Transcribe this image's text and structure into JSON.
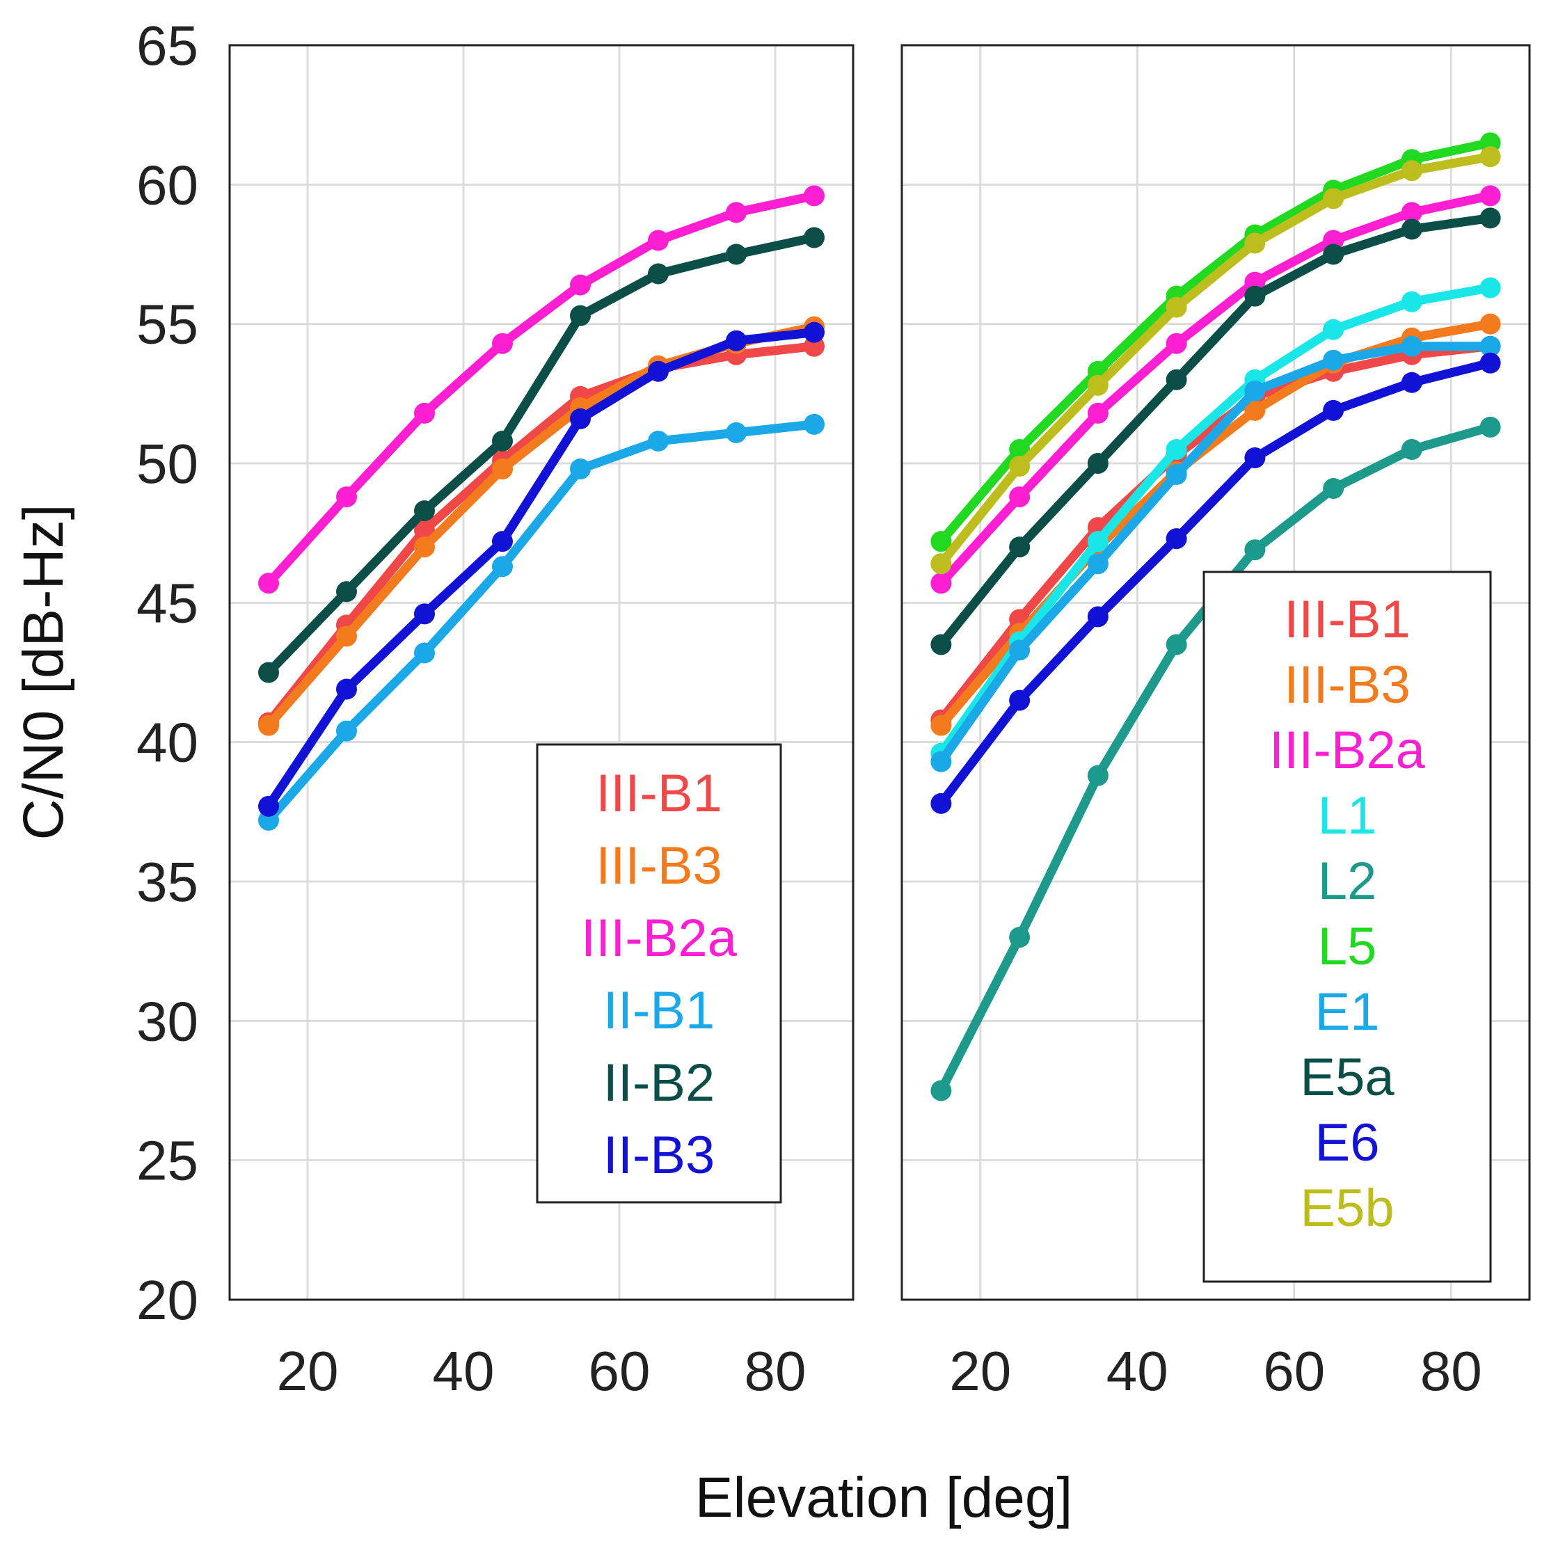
{
  "chart_data": {
    "type": "line",
    "xlabel": "Elevation [deg]",
    "ylabel": "C/N0 [dB-Hz]",
    "ylim": [
      20,
      65
    ],
    "yticks": [
      "20",
      "25",
      "30",
      "35",
      "40",
      "45",
      "50",
      "55",
      "60",
      "65"
    ],
    "xlim": [
      10,
      90
    ],
    "xticks": [
      "20",
      "40",
      "60",
      "80"
    ],
    "grid": true,
    "x": [
      15,
      25,
      35,
      45,
      55,
      65,
      75,
      85
    ],
    "panels": [
      {
        "legend_position": "bottom-right",
        "series": [
          {
            "name": "III-B1",
            "color": "#f04848",
            "values": [
              40.7,
              44.2,
              47.6,
              50.1,
              52.4,
              53.4,
              53.9,
              54.2
            ]
          },
          {
            "name": "III-B3",
            "color": "#f47a1e",
            "values": [
              40.6,
              43.8,
              47.0,
              49.8,
              52.0,
              53.5,
              54.3,
              54.9
            ]
          },
          {
            "name": "III-B2a",
            "color": "#ff1fd2",
            "values": [
              45.7,
              48.8,
              51.8,
              54.3,
              56.4,
              58.0,
              59.0,
              59.6
            ]
          },
          {
            "name": "II-B1",
            "color": "#1aa8e8",
            "values": [
              37.2,
              40.4,
              43.2,
              46.3,
              49.8,
              50.8,
              51.1,
              51.4
            ]
          },
          {
            "name": "II-B2",
            "color": "#0b4e48",
            "values": [
              42.5,
              45.4,
              48.3,
              50.8,
              55.3,
              56.8,
              57.5,
              58.1
            ]
          },
          {
            "name": "II-B3",
            "color": "#1212d6",
            "values": [
              37.7,
              41.9,
              44.6,
              47.2,
              51.6,
              53.3,
              54.4,
              54.7
            ]
          }
        ]
      },
      {
        "legend_position": "bottom-right",
        "series": [
          {
            "name": "III-B1",
            "color": "#f04848",
            "values": [
              40.8,
              44.4,
              47.7,
              50.3,
              52.4,
              53.3,
              53.9,
              54.2
            ]
          },
          {
            "name": "III-B3",
            "color": "#f47a1e",
            "values": [
              40.6,
              43.9,
              47.0,
              49.7,
              51.9,
              53.6,
              54.5,
              55.0
            ]
          },
          {
            "name": "III-B2a",
            "color": "#ff1fd2",
            "values": [
              45.7,
              48.8,
              51.8,
              54.3,
              56.5,
              58.0,
              59.0,
              59.6
            ]
          },
          {
            "name": "L1",
            "color": "#19e6e6",
            "values": [
              39.6,
              43.6,
              47.2,
              50.5,
              53.0,
              54.8,
              55.8,
              56.3
            ]
          },
          {
            "name": "L2",
            "color": "#1e9a8c",
            "values": [
              27.5,
              33.0,
              38.8,
              43.5,
              46.9,
              49.1,
              50.5,
              51.3
            ]
          },
          {
            "name": "L5",
            "color": "#22d922",
            "values": [
              47.2,
              50.5,
              53.3,
              56.0,
              58.2,
              59.8,
              60.9,
              61.5
            ]
          },
          {
            "name": "E1",
            "color": "#1aa8e8",
            "values": [
              39.3,
              43.3,
              46.4,
              49.6,
              52.6,
              53.7,
              54.2,
              54.2
            ]
          },
          {
            "name": "E5a",
            "color": "#0b4e48",
            "values": [
              43.5,
              47.0,
              50.0,
              53.0,
              56.0,
              57.5,
              58.4,
              58.8
            ]
          },
          {
            "name": "E6",
            "color": "#1212d6",
            "values": [
              37.8,
              41.5,
              44.5,
              47.3,
              50.2,
              51.9,
              52.9,
              53.6
            ]
          },
          {
            "name": "E5b",
            "color": "#bdbd1e",
            "values": [
              46.4,
              49.9,
              52.8,
              55.6,
              57.9,
              59.5,
              60.5,
              61.0
            ]
          }
        ]
      }
    ]
  }
}
